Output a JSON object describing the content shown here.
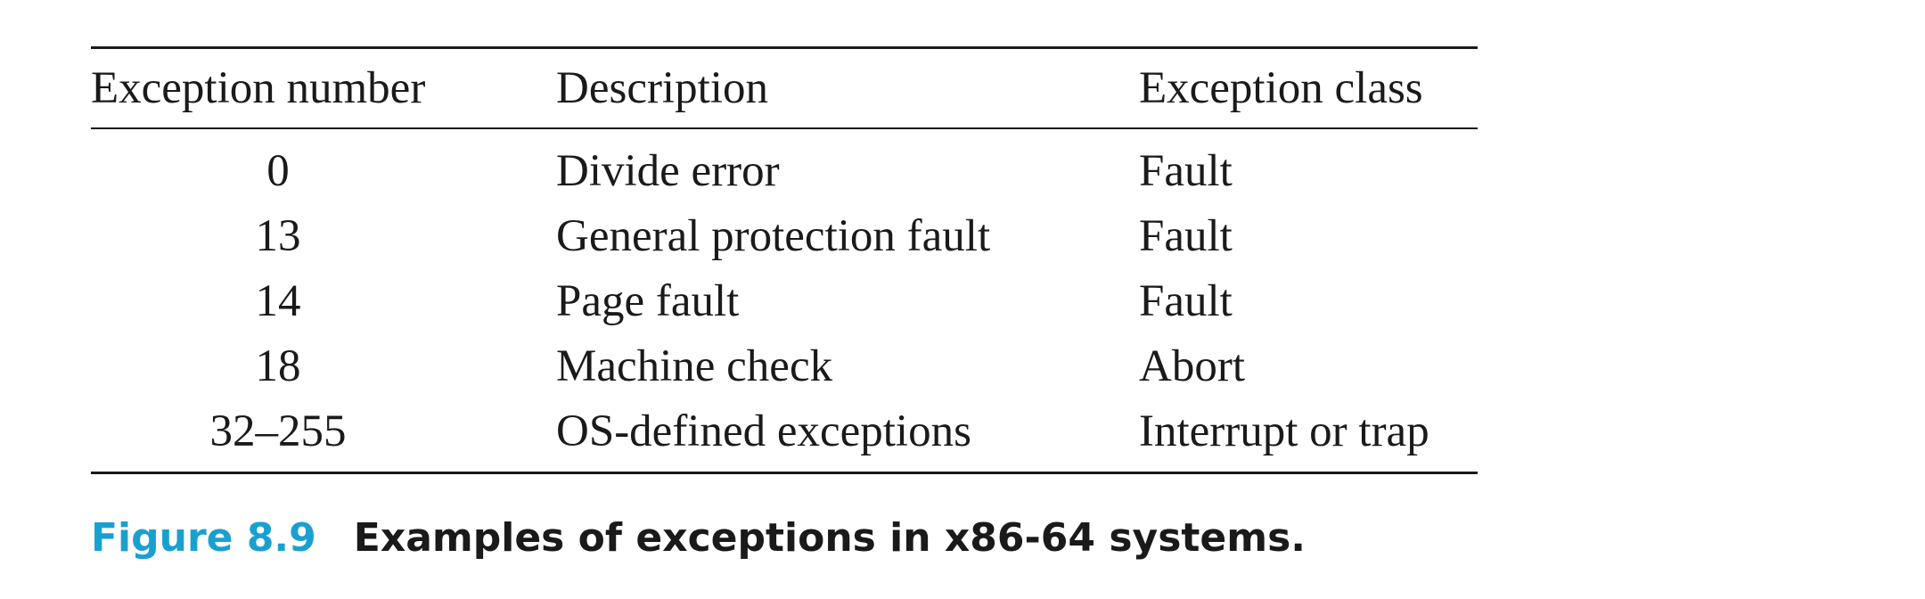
{
  "table": {
    "headers": {
      "number": "Exception number",
      "description": "Description",
      "class": "Exception class"
    },
    "rows": [
      {
        "number": "0",
        "description": "Divide error",
        "class": "Fault"
      },
      {
        "number": "13",
        "description": "General protection fault",
        "class": "Fault"
      },
      {
        "number": "14",
        "description": "Page fault",
        "class": "Fault"
      },
      {
        "number": "18",
        "description": "Machine check",
        "class": "Abort"
      },
      {
        "number": "32–255",
        "description": "OS-defined exceptions",
        "class": "Interrupt or trap"
      }
    ]
  },
  "caption": {
    "label": "Figure 8.9",
    "text": "Examples of exceptions in x86-64 systems."
  },
  "colors": {
    "caption_label": "#1aa0cf",
    "text": "#1a1a1a"
  }
}
